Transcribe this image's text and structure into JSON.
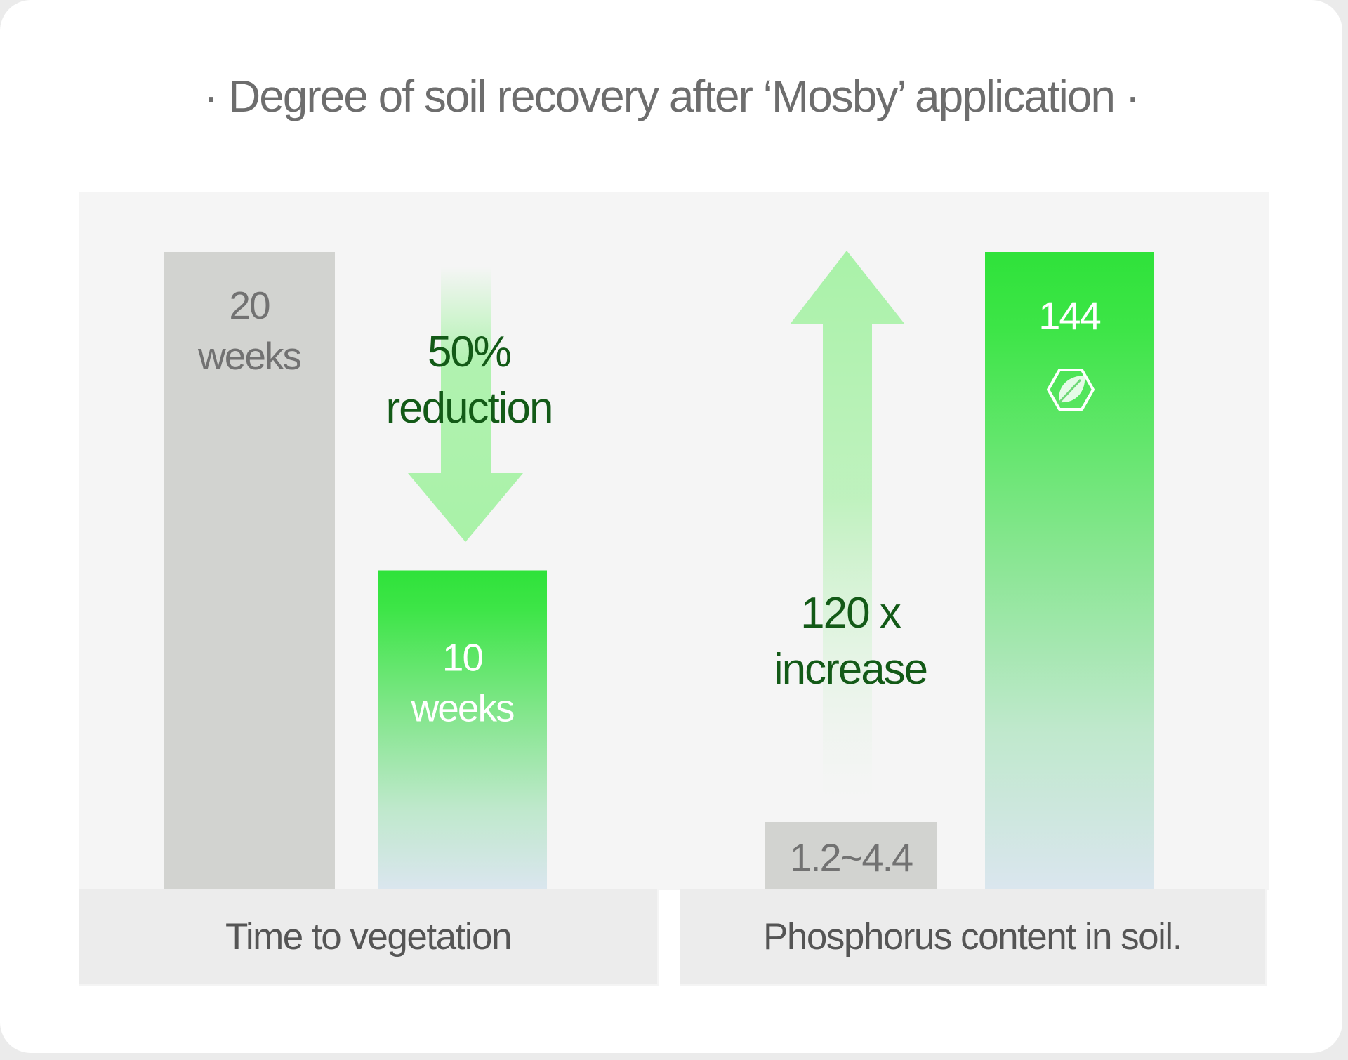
{
  "title": "· Degree of soil recovery after ‘Mosby’ application ·",
  "colors": {
    "gray_bar": "#d2d3d0",
    "green_top": "#2fe23a",
    "green_bottom": "#dae6ee",
    "arrow": "#a9f2a8",
    "dark_green_text": "#135a17",
    "gray_text": "#727272"
  },
  "chart_data": [
    {
      "type": "bar",
      "xlabel": "Time to vegetation",
      "categories": [
        "",
        ""
      ],
      "values": [
        20,
        10
      ],
      "value_labels": [
        [
          "20",
          "weeks"
        ],
        [
          "10",
          "weeks"
        ]
      ],
      "annotation": [
        "50%",
        "reduction"
      ],
      "annotation_arrow": "down",
      "ylim": [
        0,
        20
      ],
      "grid": false
    },
    {
      "type": "bar",
      "xlabel": "Phosphorus content in soil.",
      "categories": [
        "",
        ""
      ],
      "values": [
        4.4,
        144
      ],
      "value_labels": [
        [
          "1.2~4.4"
        ],
        [
          "144"
        ]
      ],
      "annotation": [
        "120 x",
        "increase"
      ],
      "annotation_arrow": "up",
      "icon": "leaf-hexagon-icon",
      "ylim": [
        0,
        144
      ],
      "grid": false
    }
  ]
}
